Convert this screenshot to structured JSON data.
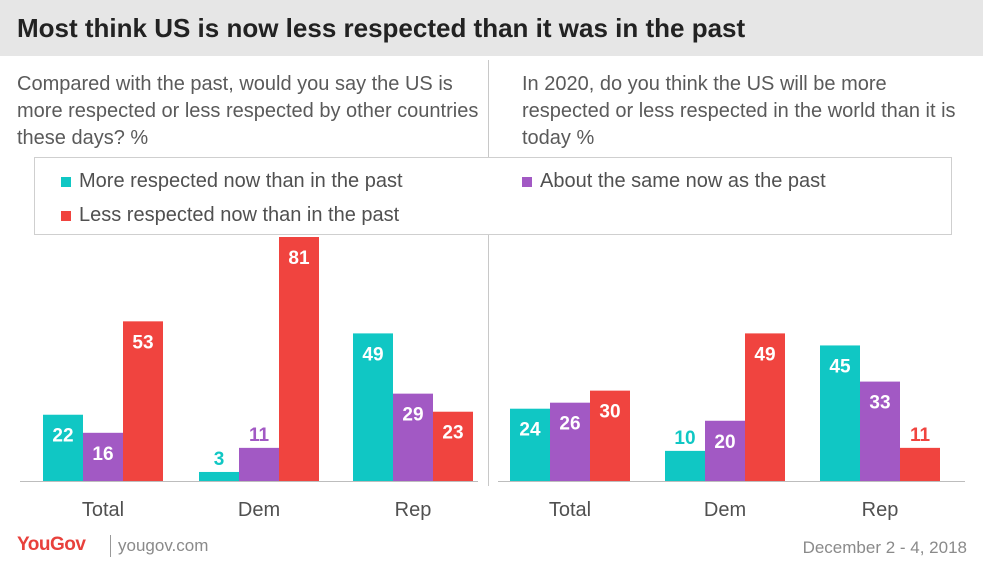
{
  "title": "Most think US is now less respected than it was in the past",
  "colors": {
    "more": "#10c7c4",
    "same": "#a259c4",
    "less": "#f0443f",
    "title_bar": "#e6e6e6"
  },
  "legend": {
    "more": "More respected now than in the past",
    "same": "About the same now as the past",
    "less": "Less respected now than in the past"
  },
  "footer": {
    "logo": "YouGov",
    "site": "yougov.com",
    "date": "December 2 - 4, 2018"
  },
  "chart_data": [
    {
      "type": "bar",
      "title": "Compared with the past, would you say the US is more respected or less respected by other countries these days? %",
      "categories": [
        "Total",
        "Dem",
        "Rep"
      ],
      "series": [
        {
          "name": "More respected now than in the past",
          "values": [
            22,
            3,
            49
          ]
        },
        {
          "name": "About the same now as the past",
          "values": [
            16,
            11,
            29
          ]
        },
        {
          "name": "Less respected now than in the past",
          "values": [
            53,
            81,
            23
          ]
        }
      ],
      "ylim": [
        0,
        81
      ],
      "grid": false
    },
    {
      "type": "bar",
      "title": "In 2020, do you think the US will be more respected or less respected in the world than it is today %",
      "categories": [
        "Total",
        "Dem",
        "Rep"
      ],
      "series": [
        {
          "name": "More respected now than in the past",
          "values": [
            24,
            10,
            45
          ]
        },
        {
          "name": "About the same now as the past",
          "values": [
            26,
            20,
            33
          ]
        },
        {
          "name": "Less respected now than in the past",
          "values": [
            30,
            49,
            11
          ]
        }
      ],
      "ylim": [
        0,
        81
      ],
      "grid": false
    }
  ]
}
